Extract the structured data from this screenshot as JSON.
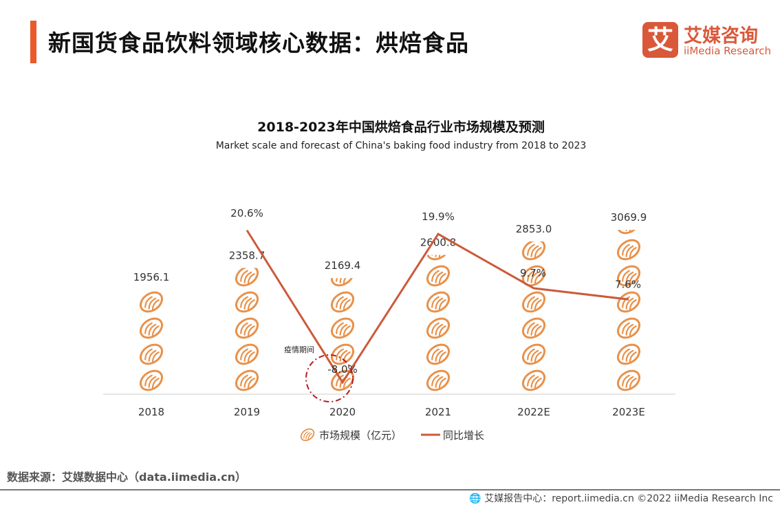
{
  "header": {
    "title": "新国货食品饮料领域核心数据：烘焙食品"
  },
  "logo": {
    "mark": "艾",
    "cn": "艾媒咨询",
    "en": "iiMedia Research"
  },
  "chart_data": {
    "type": "bar",
    "subtype": "pictogram bar + line",
    "title": "2018-2023年中国烘焙食品行业市场规模及预测",
    "subtitle": "Market scale and forecast of China's baking food industry from 2018 to 2023",
    "categories": [
      "2018",
      "2019",
      "2020",
      "2021",
      "2022E",
      "2023E"
    ],
    "series": [
      {
        "name": "市场规模（亿元）",
        "type": "pictogram-bar",
        "icon": "bread-icon",
        "color": "#e8914a",
        "values": [
          1956.1,
          2358.7,
          2169.4,
          2600.8,
          2853.0,
          3069.9
        ],
        "labels": [
          "1956.1",
          "2358.7",
          "2169.4",
          "2600.8",
          "2853.0",
          "3069.9"
        ]
      },
      {
        "name": "同比增长",
        "type": "line",
        "color": "#cc5a3a",
        "values": [
          null,
          20.6,
          -8.0,
          19.9,
          9.7,
          7.6
        ],
        "labels": [
          "",
          "20.6%",
          "-8.0%",
          "19.9%",
          "9.7%",
          "7.6%"
        ]
      }
    ],
    "annotation": {
      "text": "疫情期间",
      "target": "2020",
      "shape": "dash-dot circle",
      "color": "#b01e23"
    },
    "legend": "bottom",
    "grid": false
  },
  "footer": {
    "source": "数据来源：艾媒数据中心（data.iimedia.cn）",
    "credit": "艾媒报告中心：report.iimedia.cn   ©2022  iiMedia Research  Inc"
  }
}
